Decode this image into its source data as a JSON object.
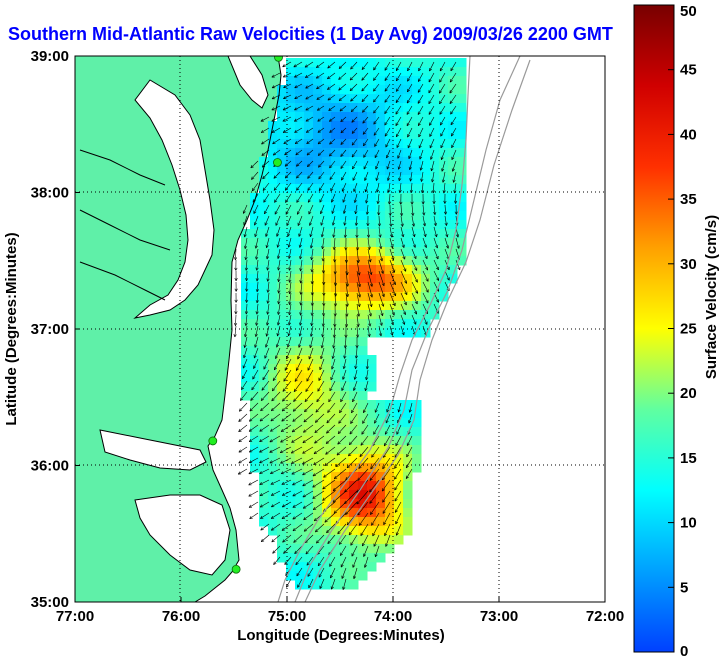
{
  "title": "Southern Mid-Atlantic Raw Velocities (1 Day Avg) 2009/03/26 2200 GMT",
  "map": {
    "x_axis_label": "Longitude (Degrees:Minutes)",
    "y_axis_label": "Latitude (Degrees:Minutes)",
    "lon_range": [
      -77.0,
      -72.0
    ],
    "lat_range": [
      35.0,
      39.0
    ],
    "x_ticks": [
      "77:00",
      "76:00",
      "75:00",
      "74:00",
      "73:00",
      "72:00"
    ],
    "y_ticks": [
      "39:00",
      "38:00",
      "37:00",
      "36:00",
      "35:00"
    ],
    "land_color": "#5ff0a8",
    "station_color": "#22ee22",
    "stations": [
      {
        "lon": -75.08,
        "lat": 38.99
      },
      {
        "lon": -75.09,
        "lat": 38.22
      },
      {
        "lon": -75.7,
        "lat": 36.18
      },
      {
        "lon": -75.48,
        "lat": 35.24
      }
    ]
  },
  "colorbar": {
    "label": "Surface Velocity (cm/s)",
    "range": [
      0,
      50
    ],
    "ticks": [
      "0",
      "5",
      "10",
      "15",
      "20",
      "25",
      "30",
      "35",
      "40",
      "45",
      "50"
    ],
    "colormap": "jet"
  }
}
